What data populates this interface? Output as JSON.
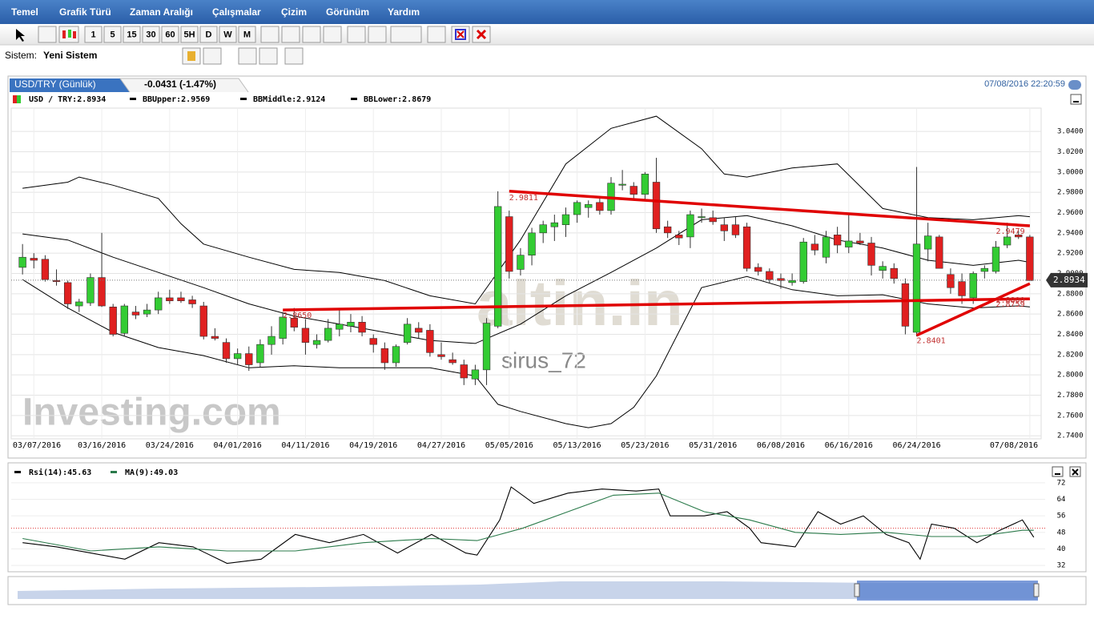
{
  "menu": [
    "Temel",
    "Grafik Türü",
    "Zaman Aralığı",
    "Çalışmalar",
    "Çizim",
    "Görünüm",
    "Yardım"
  ],
  "toolbar": {
    "intervals": [
      "1",
      "5",
      "15",
      "30",
      "60",
      "5H",
      "D",
      "W",
      "M"
    ]
  },
  "system": {
    "label": "Sistem:",
    "name": "Yeni Sistem"
  },
  "tab": {
    "title": "USD/TRY (Günlük)",
    "change": "-0.0431 (-1.47%)",
    "time": "07/08/2016 22:20:59"
  },
  "chart_data": [
    {
      "type": "candlestick",
      "watermarks": [
        "altin.in",
        "sirus_72",
        "Investing.com"
      ],
      "xlim": [
        -1,
        90
      ],
      "ylim": [
        2.737,
        3.063
      ],
      "xticks": [
        {
          "value": 1,
          "label": "03/07/2016"
        },
        {
          "value": 7,
          "label": "03/16/2016"
        },
        {
          "value": 13,
          "label": "03/24/2016"
        },
        {
          "value": 19,
          "label": "04/01/2016"
        },
        {
          "value": 25,
          "label": "04/11/2016"
        },
        {
          "value": 31,
          "label": "04/19/2016"
        },
        {
          "value": 37,
          "label": "04/27/2016"
        },
        {
          "value": 43,
          "label": "05/05/2016"
        },
        {
          "value": 49,
          "label": "05/13/2016"
        },
        {
          "value": 55,
          "label": "05/23/2016"
        },
        {
          "value": 61,
          "label": "05/31/2016"
        },
        {
          "value": 67,
          "label": "06/08/2016"
        },
        {
          "value": 73,
          "label": "06/16/2016"
        },
        {
          "value": 79,
          "label": "06/24/2016"
        },
        {
          "value": 89,
          "label": "07/08/2016"
        }
      ],
      "yticks": [
        {
          "value": 3.04,
          "label": "3.0400"
        },
        {
          "value": 3.02,
          "label": "3.0200"
        },
        {
          "value": 3.0,
          "label": "3.0000"
        },
        {
          "value": 2.98,
          "label": "2.9800"
        },
        {
          "value": 2.96,
          "label": "2.9600"
        },
        {
          "value": 2.94,
          "label": "2.9400"
        },
        {
          "value": 2.92,
          "label": "2.9200"
        },
        {
          "value": 2.9,
          "label": "2.9000"
        },
        {
          "value": 2.88,
          "label": "2.8800"
        },
        {
          "value": 2.86,
          "label": "2.8600"
        },
        {
          "value": 2.84,
          "label": "2.8400"
        },
        {
          "value": 2.82,
          "label": "2.8200"
        },
        {
          "value": 2.8,
          "label": "2.8000"
        },
        {
          "value": 2.78,
          "label": "2.7800"
        },
        {
          "value": 2.76,
          "label": "2.7600"
        },
        {
          "value": 2.74,
          "label": "2.7400"
        }
      ],
      "grid": true,
      "last": 2.8934,
      "candles": {
        "name": "USD / TRY:2.8934",
        "up_color": "#33cc33",
        "down_color": "#e02020",
        "ohlc": [
          [
            2.906,
            2.929,
            2.899,
            2.916
          ],
          [
            2.915,
            2.92,
            2.905,
            2.913
          ],
          [
            2.914,
            2.918,
            2.892,
            2.894
          ],
          [
            2.893,
            2.904,
            2.888,
            2.892
          ],
          [
            2.891,
            2.893,
            2.865,
            2.87
          ],
          [
            2.868,
            2.875,
            2.862,
            2.872
          ],
          [
            2.871,
            2.9,
            2.868,
            2.896
          ],
          [
            2.896,
            2.94,
            2.867,
            2.868
          ],
          [
            2.867,
            2.87,
            2.838,
            2.84
          ],
          [
            2.841,
            2.87,
            2.838,
            2.868
          ],
          [
            2.862,
            2.868,
            2.855,
            2.859
          ],
          [
            2.86,
            2.87,
            2.857,
            2.864
          ],
          [
            2.864,
            2.882,
            2.86,
            2.876
          ],
          [
            2.876,
            2.884,
            2.87,
            2.873
          ],
          [
            2.876,
            2.882,
            2.871,
            2.873
          ],
          [
            2.874,
            2.878,
            2.866,
            2.87
          ],
          [
            2.868,
            2.872,
            2.835,
            2.838
          ],
          [
            2.838,
            2.846,
            2.834,
            2.836
          ],
          [
            2.832,
            2.836,
            2.812,
            2.816
          ],
          [
            2.816,
            2.826,
            2.81,
            2.821
          ],
          [
            2.821,
            2.828,
            2.804,
            2.81
          ],
          [
            2.812,
            2.835,
            2.808,
            2.83
          ],
          [
            2.83,
            2.848,
            2.82,
            2.838
          ],
          [
            2.836,
            2.862,
            2.83,
            2.857
          ],
          [
            2.856,
            2.866,
            2.843,
            2.847
          ],
          [
            2.846,
            2.855,
            2.82,
            2.832
          ],
          [
            2.83,
            2.84,
            2.826,
            2.834
          ],
          [
            2.834,
            2.855,
            2.832,
            2.846
          ],
          [
            2.845,
            2.865,
            2.838,
            2.85
          ],
          [
            2.848,
            2.86,
            2.842,
            2.852
          ],
          [
            2.852,
            2.858,
            2.838,
            2.842
          ],
          [
            2.836,
            2.84,
            2.822,
            2.83
          ],
          [
            2.826,
            2.832,
            2.805,
            2.812
          ],
          [
            2.812,
            2.83,
            2.808,
            2.828
          ],
          [
            2.832,
            2.856,
            2.83,
            2.85
          ],
          [
            2.846,
            2.852,
            2.836,
            2.842
          ],
          [
            2.844,
            2.85,
            2.818,
            2.822
          ],
          [
            2.82,
            2.832,
            2.815,
            2.818
          ],
          [
            2.815,
            2.822,
            2.81,
            2.812
          ],
          [
            2.81,
            2.815,
            2.79,
            2.797
          ],
          [
            2.796,
            2.81,
            2.79,
            2.805
          ],
          [
            2.805,
            2.856,
            2.79,
            2.851
          ],
          [
            2.848,
            2.981,
            2.846,
            2.966
          ],
          [
            2.956,
            2.962,
            2.895,
            2.902
          ],
          [
            2.904,
            2.925,
            2.898,
            2.918
          ],
          [
            2.918,
            2.945,
            2.908,
            2.94
          ],
          [
            2.94,
            2.952,
            2.93,
            2.948
          ],
          [
            2.946,
            2.958,
            2.932,
            2.95
          ],
          [
            2.948,
            2.965,
            2.936,
            2.958
          ],
          [
            2.958,
            2.972,
            2.95,
            2.97
          ],
          [
            2.965,
            2.972,
            2.955,
            2.968
          ],
          [
            2.97,
            2.976,
            2.958,
            2.962
          ],
          [
            2.962,
            2.995,
            2.958,
            2.989
          ],
          [
            2.987,
            3.002,
            2.982,
            2.988
          ],
          [
            2.986,
            2.99,
            2.972,
            2.978
          ],
          [
            2.978,
            3.0,
            2.972,
            2.998
          ],
          [
            2.99,
            3.014,
            2.94,
            2.944
          ],
          [
            2.946,
            2.952,
            2.935,
            2.94
          ],
          [
            2.938,
            2.942,
            2.928,
            2.935
          ],
          [
            2.936,
            2.962,
            2.925,
            2.958
          ],
          [
            2.955,
            2.964,
            2.95,
            2.956
          ],
          [
            2.955,
            2.962,
            2.948,
            2.951
          ],
          [
            2.948,
            2.955,
            2.932,
            2.942
          ],
          [
            2.948,
            2.956,
            2.935,
            2.938
          ],
          [
            2.946,
            2.95,
            2.902,
            2.905
          ],
          [
            2.906,
            2.91,
            2.898,
            2.902
          ],
          [
            2.902,
            2.905,
            2.89,
            2.894
          ],
          [
            2.895,
            2.9,
            2.885,
            2.893
          ],
          [
            2.891,
            2.9,
            2.888,
            2.893
          ],
          [
            2.892,
            2.935,
            2.89,
            2.931
          ],
          [
            2.929,
            2.938,
            2.918,
            2.923
          ],
          [
            2.916,
            2.942,
            2.91,
            2.936
          ],
          [
            2.938,
            2.946,
            2.92,
            2.928
          ],
          [
            2.926,
            2.958,
            2.92,
            2.932
          ],
          [
            2.932,
            2.94,
            2.928,
            2.93
          ],
          [
            2.93,
            2.936,
            2.898,
            2.908
          ],
          [
            2.903,
            2.912,
            2.895,
            2.907
          ],
          [
            2.905,
            2.91,
            2.89,
            2.895
          ],
          [
            2.89,
            2.895,
            2.84,
            2.848
          ],
          [
            2.842,
            3.005,
            2.838,
            2.929
          ],
          [
            2.924,
            2.95,
            2.912,
            2.937
          ],
          [
            2.936,
            2.938,
            2.905,
            2.905
          ],
          [
            2.899,
            2.905,
            2.88,
            2.886
          ],
          [
            2.892,
            2.9,
            2.87,
            2.878
          ],
          [
            2.876,
            2.902,
            2.87,
            2.9
          ],
          [
            2.902,
            2.908,
            2.895,
            2.905
          ],
          [
            2.902,
            2.932,
            2.9,
            2.926
          ],
          [
            2.928,
            2.95,
            2.925,
            2.936
          ],
          [
            2.938,
            2.942,
            2.934,
            2.936
          ],
          [
            2.936,
            2.938,
            2.893,
            2.893
          ]
        ]
      },
      "series": [
        {
          "name": "BBUpper:2.9569",
          "color": "#000000",
          "x": [
            0,
            4,
            5,
            8,
            12,
            14,
            16,
            20,
            24,
            28,
            32,
            36,
            40,
            44,
            48,
            52,
            56,
            60,
            62,
            64,
            68,
            72,
            76,
            80,
            84,
            88,
            89
          ],
          "values": [
            2.984,
            2.99,
            2.995,
            2.987,
            2.974,
            2.949,
            2.929,
            2.916,
            2.904,
            2.901,
            2.893,
            2.878,
            2.87,
            2.933,
            3.008,
            3.043,
            3.055,
            3.023,
            2.998,
            2.995,
            3.004,
            3.008,
            2.964,
            2.955,
            2.953,
            2.957,
            2.956
          ]
        },
        {
          "name": "BBMiddle:2.9124",
          "color": "#000000",
          "x": [
            0,
            4,
            8,
            12,
            16,
            20,
            24,
            28,
            32,
            36,
            40,
            44,
            48,
            52,
            56,
            60,
            64,
            68,
            72,
            76,
            80,
            84,
            88,
            89
          ],
          "values": [
            2.939,
            2.933,
            2.916,
            2.901,
            2.886,
            2.87,
            2.858,
            2.85,
            2.842,
            2.834,
            2.831,
            2.85,
            2.878,
            2.901,
            2.925,
            2.953,
            2.957,
            2.947,
            2.933,
            2.925,
            2.913,
            2.908,
            2.913,
            2.911
          ]
        },
        {
          "name": "BBLower:2.8679",
          "color": "#000000",
          "x": [
            0,
            4,
            8,
            12,
            16,
            20,
            24,
            28,
            32,
            36,
            40,
            42,
            44,
            48,
            50,
            52,
            54,
            56,
            60,
            64,
            68,
            72,
            76,
            80,
            84,
            88,
            89
          ],
          "values": [
            2.894,
            2.866,
            2.842,
            2.827,
            2.819,
            2.807,
            2.809,
            2.807,
            2.807,
            2.807,
            2.799,
            2.771,
            2.764,
            2.752,
            2.748,
            2.752,
            2.768,
            2.799,
            2.886,
            2.897,
            2.884,
            2.878,
            2.879,
            2.87,
            2.866,
            2.868,
            2.867
          ]
        }
      ],
      "trendlines": [
        {
          "color": "#e00000",
          "x": [
            43,
            89
          ],
          "values": [
            2.9811,
            2.947
          ]
        },
        {
          "color": "#e00000",
          "x": [
            23,
            89
          ],
          "values": [
            2.864,
            2.875
          ]
        },
        {
          "color": "#e00000",
          "x": [
            79,
            89
          ],
          "values": [
            2.839,
            2.89
          ]
        }
      ],
      "annotations": [
        {
          "label": "2.9811",
          "x": 43,
          "value": 2.9811
        },
        {
          "label": "2.8650",
          "x": 23,
          "value": 2.865
        },
        {
          "label": "2.9479",
          "x": 86,
          "value": 2.9479
        },
        {
          "label": "2.8800",
          "x": 86,
          "value": 2.88
        },
        {
          "label": "2.8759",
          "x": 86,
          "value": 2.8759
        },
        {
          "label": "2.8401",
          "x": 79,
          "value": 2.8401
        }
      ]
    },
    {
      "type": "line",
      "xlim": [
        -1,
        90
      ],
      "ylim": [
        29.7,
        74.3
      ],
      "yticks": [
        72,
        64,
        56,
        48,
        40,
        32
      ],
      "hline": 50,
      "hline_color": "#e03030",
      "series": [
        {
          "name": "Rsi(14):45.63",
          "color": "#000000",
          "x": [
            0,
            3,
            6,
            9,
            12,
            15,
            18,
            21,
            24,
            27,
            30,
            33,
            36,
            39,
            40,
            42,
            43,
            45,
            48,
            51,
            54,
            56,
            57,
            60,
            62,
            64,
            65,
            68,
            70,
            72,
            74,
            76,
            78,
            79,
            80,
            82,
            84,
            86,
            88,
            89
          ],
          "values": [
            43,
            41,
            38,
            35,
            43,
            41,
            33,
            35,
            47,
            43,
            47,
            38,
            47,
            38,
            37,
            54,
            70,
            62,
            67,
            69,
            68,
            69,
            56,
            56,
            58,
            50,
            43,
            41,
            58,
            52,
            56,
            47,
            43,
            35,
            52,
            50,
            43,
            49,
            54,
            45.63
          ]
        },
        {
          "name": "MA(9):49.03",
          "color": "#2a7a4a",
          "x": [
            0,
            6,
            12,
            18,
            24,
            30,
            36,
            40,
            44,
            48,
            52,
            56,
            60,
            64,
            68,
            72,
            76,
            80,
            84,
            88,
            89
          ],
          "values": [
            45,
            39,
            41,
            39,
            39,
            43,
            45,
            44,
            50,
            58,
            66,
            67,
            58,
            54,
            48,
            47,
            48,
            46,
            46,
            49,
            49.03
          ]
        }
      ]
    }
  ]
}
